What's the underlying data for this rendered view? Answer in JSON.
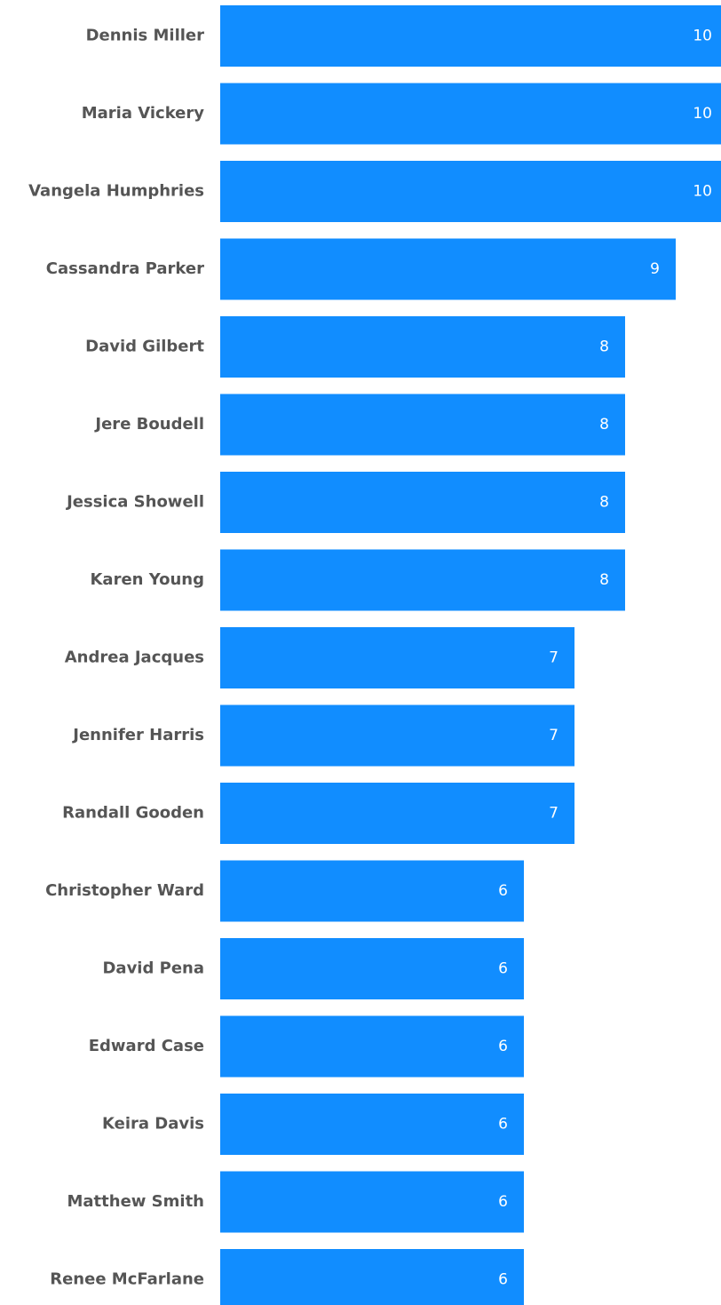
{
  "chart_data": {
    "type": "bar",
    "orientation": "horizontal",
    "categories": [
      "Dennis Miller",
      "Maria Vickery",
      "Vangela Humphries",
      "Cassandra Parker",
      "David Gilbert",
      "Jere Boudell",
      "Jessica Showell",
      "Karen Young",
      "Andrea Jacques",
      "Jennifer Harris",
      "Randall Gooden",
      "Christopher Ward",
      "David Pena",
      "Edward Case",
      "Keira Davis",
      "Matthew Smith",
      "Renee McFarlane"
    ],
    "values": [
      10,
      10,
      10,
      9,
      8,
      8,
      8,
      8,
      7,
      7,
      7,
      6,
      6,
      6,
      6,
      6,
      6
    ],
    "color": "#118dff"
  }
}
